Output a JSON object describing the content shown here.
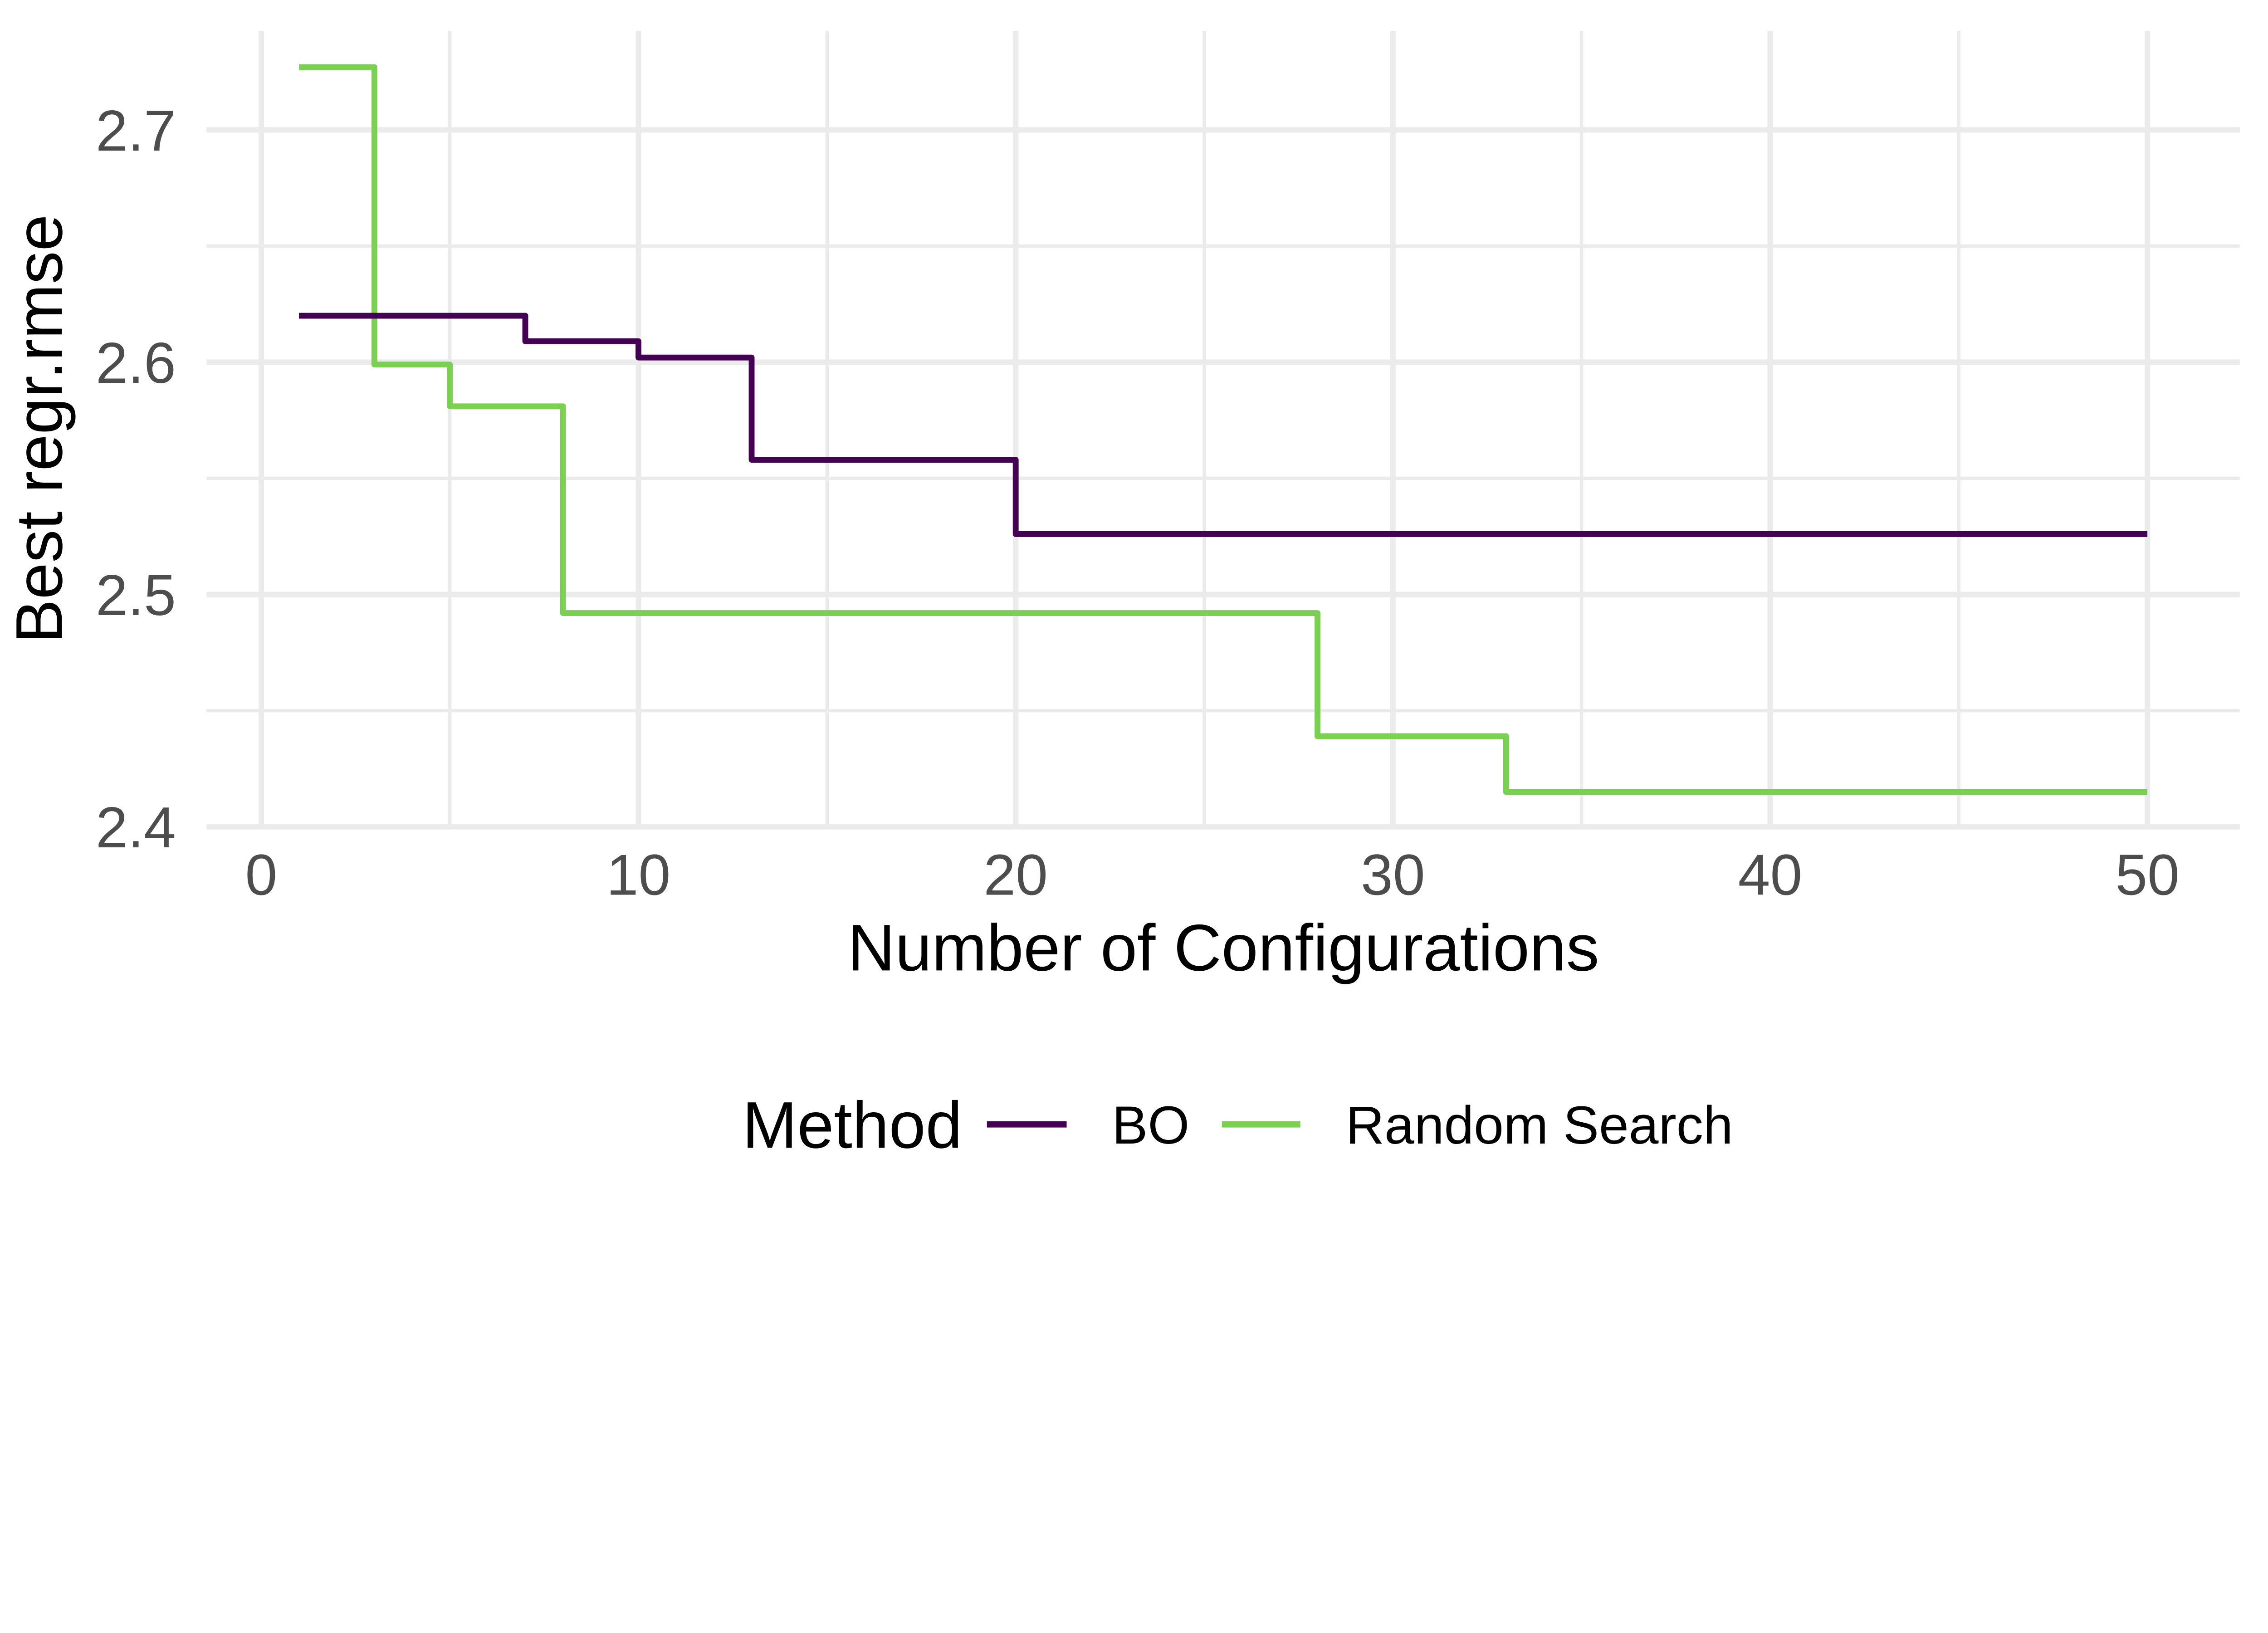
{
  "figure": {
    "background": "#ffffff",
    "grid_color": "#ebebeb",
    "tick_label_color": "#4d4d4d",
    "text_color": "#000000"
  },
  "legend": {
    "title": "Method",
    "position": "bottom",
    "items": [
      {
        "label": "BO",
        "color": "#440154"
      },
      {
        "label": "Random Search",
        "color": "#7AD151"
      }
    ]
  },
  "chart_data": {
    "type": "line",
    "subtype": "step",
    "title": "",
    "xlabel": "Number of Configurations",
    "ylabel": "Best regr.rmse",
    "xlim": [
      -1.45,
      52.45
    ],
    "ylim": [
      2.3994,
      2.7426
    ],
    "x_ticks": [
      0,
      10,
      20,
      30,
      40,
      50
    ],
    "y_ticks": [
      2.4,
      2.5,
      2.6,
      2.7
    ],
    "x_minor_ticks": [
      5,
      15,
      25,
      35,
      45
    ],
    "y_minor_ticks": [
      2.45,
      2.55,
      2.65
    ],
    "grid": "on",
    "legend_position": "bottom",
    "series": [
      {
        "name": "BO",
        "color": "#440154",
        "x_start": 1,
        "x_end": 50,
        "steps": [
          [
            1,
            2.62
          ],
          [
            7,
            2.609
          ],
          [
            10,
            2.602
          ],
          [
            13,
            2.558
          ],
          [
            20,
            2.526
          ]
        ]
      },
      {
        "name": "Random Search",
        "color": "#7AD151",
        "x_start": 1,
        "x_end": 50,
        "steps": [
          [
            1,
            2.727
          ],
          [
            3,
            2.599
          ],
          [
            5,
            2.581
          ],
          [
            8,
            2.492
          ],
          [
            28,
            2.439
          ],
          [
            33,
            2.415
          ]
        ]
      }
    ]
  }
}
